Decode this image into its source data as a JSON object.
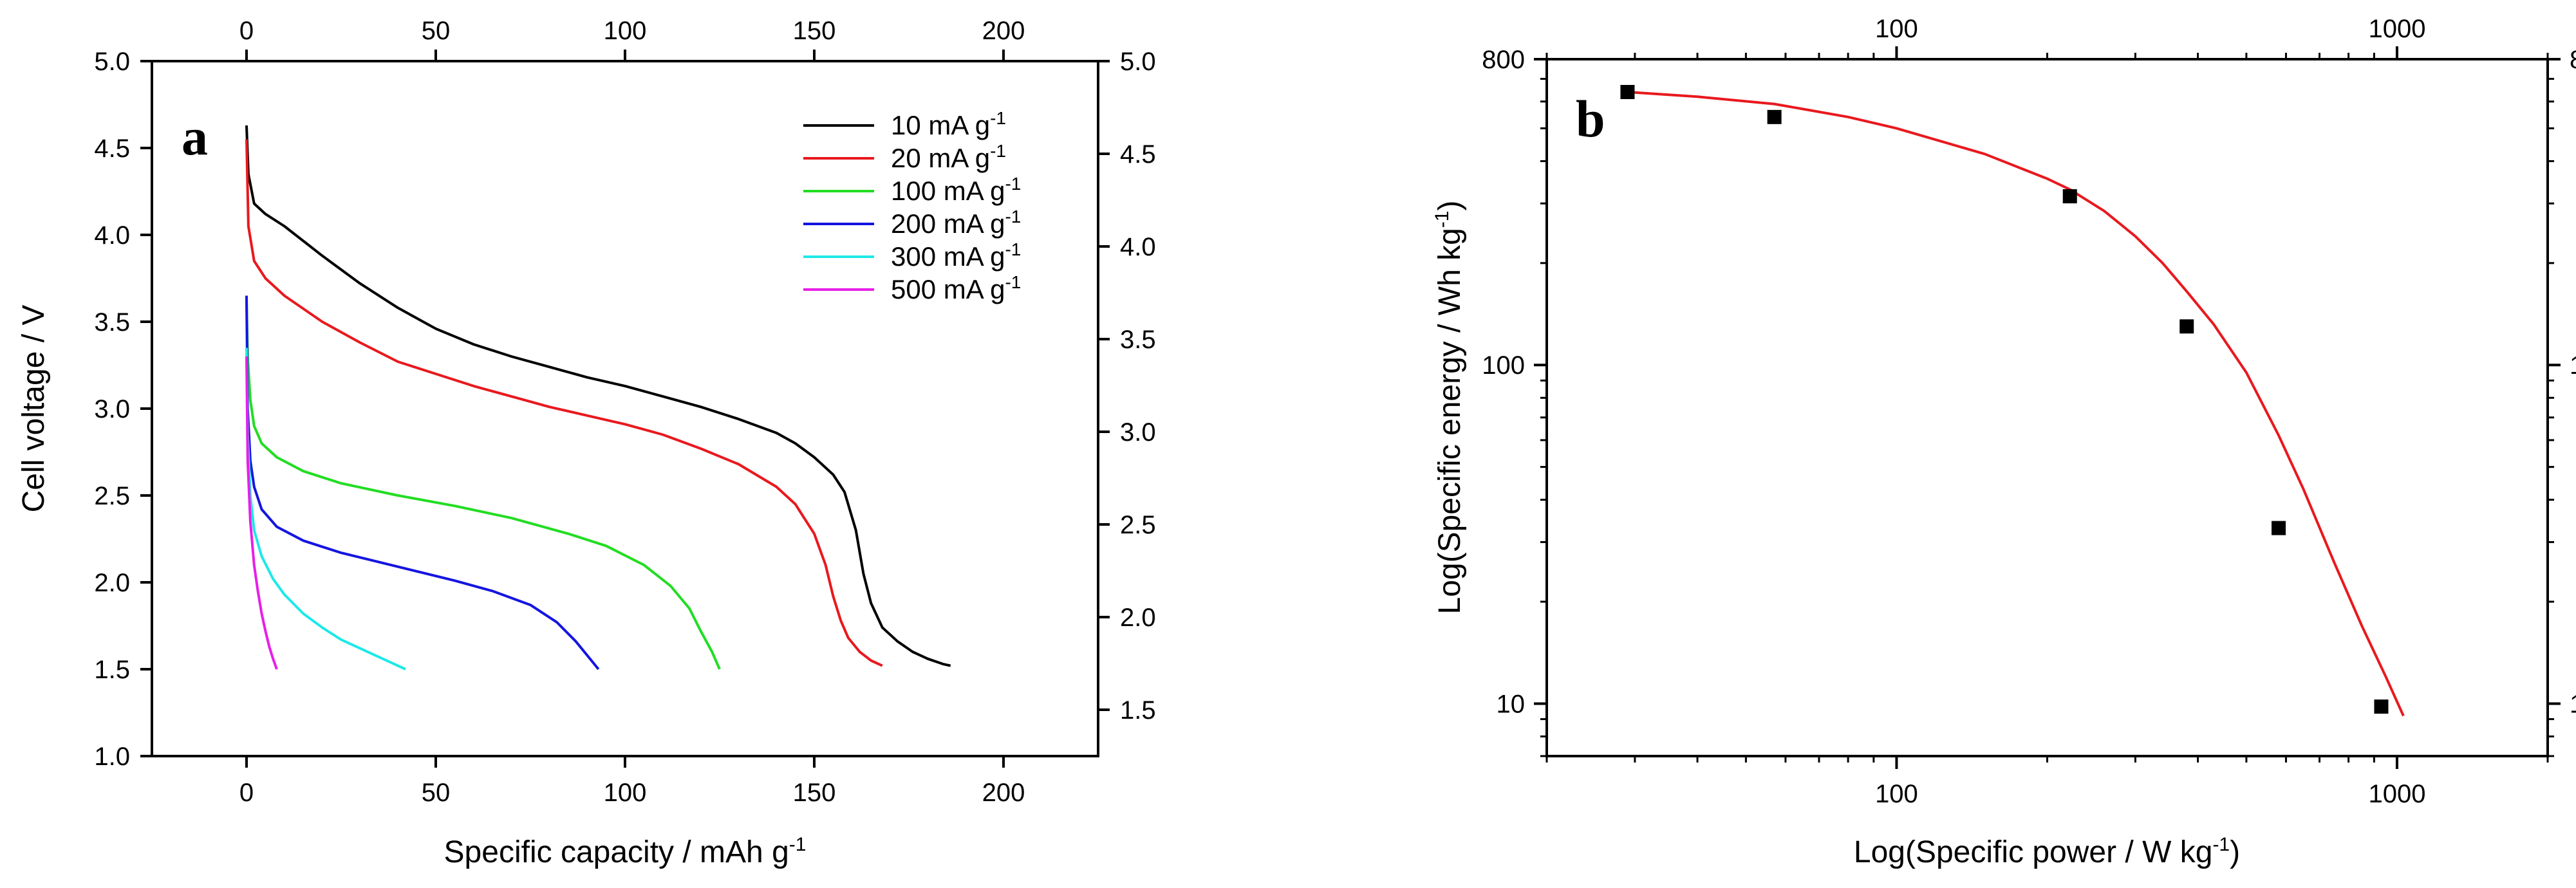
{
  "chart_data": [
    {
      "type": "line",
      "panel_label": "a",
      "xlabel": "Specific capacity / mAh g",
      "xlabel_sup": "-1",
      "ylabel": "Cell voltage / V",
      "xlim": [
        -25,
        225
      ],
      "ylim": [
        1.0,
        5.0
      ],
      "y2lim": [
        1.25,
        5.0
      ],
      "x_ticks": [
        "0",
        "50",
        "100",
        "150",
        "200"
      ],
      "y_ticks": [
        "1.0",
        "1.5",
        "2.0",
        "2.5",
        "3.0",
        "3.5",
        "4.0",
        "4.5",
        "5.0"
      ],
      "y2_ticks": [
        "1.5",
        "2.0",
        "2.5",
        "3.0",
        "3.5",
        "4.0",
        "4.5",
        "5.0"
      ],
      "legend_position": "top-right",
      "series": [
        {
          "name": "10 mA g",
          "sup": "-1",
          "color": "#000000",
          "x": [
            0,
            0.5,
            2,
            5,
            10,
            20,
            30,
            40,
            50,
            60,
            70,
            80,
            90,
            100,
            110,
            120,
            130,
            140,
            145,
            150,
            155,
            158,
            161,
            163,
            165,
            168,
            172,
            176,
            180,
            184,
            186
          ],
          "y": [
            4.63,
            4.35,
            4.18,
            4.12,
            4.05,
            3.88,
            3.72,
            3.58,
            3.46,
            3.37,
            3.3,
            3.24,
            3.18,
            3.13,
            3.07,
            3.01,
            2.94,
            2.86,
            2.8,
            2.72,
            2.62,
            2.52,
            2.3,
            2.05,
            1.88,
            1.74,
            1.66,
            1.6,
            1.56,
            1.53,
            1.52
          ]
        },
        {
          "name": "20 mA g",
          "sup": "-1",
          "color": "#e8191e",
          "x": [
            0,
            0.5,
            2,
            5,
            10,
            20,
            30,
            40,
            50,
            60,
            70,
            80,
            90,
            100,
            110,
            120,
            130,
            140,
            145,
            150,
            153,
            155,
            157,
            159,
            162,
            165,
            168
          ],
          "y": [
            4.55,
            4.05,
            3.85,
            3.75,
            3.65,
            3.5,
            3.38,
            3.27,
            3.2,
            3.13,
            3.07,
            3.01,
            2.96,
            2.91,
            2.85,
            2.77,
            2.68,
            2.55,
            2.45,
            2.28,
            2.1,
            1.92,
            1.78,
            1.68,
            1.6,
            1.55,
            1.52
          ]
        },
        {
          "name": "100 mA g",
          "sup": "-1",
          "color": "#22dd22",
          "x": [
            0,
            0.3,
            1,
            2,
            4,
            8,
            15,
            25,
            40,
            55,
            70,
            85,
            95,
            105,
            112,
            117,
            120,
            123,
            125
          ],
          "y": [
            3.62,
            3.3,
            3.05,
            2.9,
            2.8,
            2.72,
            2.64,
            2.57,
            2.5,
            2.44,
            2.37,
            2.28,
            2.21,
            2.1,
            1.98,
            1.85,
            1.72,
            1.6,
            1.5
          ]
        },
        {
          "name": "200 mA g",
          "sup": "-1",
          "color": "#1515e0",
          "x": [
            0,
            0.3,
            1,
            2,
            4,
            8,
            15,
            25,
            40,
            55,
            65,
            75,
            82,
            87,
            90,
            93
          ],
          "y": [
            3.65,
            3.0,
            2.7,
            2.55,
            2.42,
            2.32,
            2.24,
            2.17,
            2.09,
            2.01,
            1.95,
            1.87,
            1.77,
            1.66,
            1.58,
            1.5
          ]
        },
        {
          "name": "300 mA g",
          "sup": "-1",
          "color": "#1ee8e8",
          "x": [
            0,
            0.3,
            1,
            2,
            4,
            7,
            10,
            15,
            20,
            25,
            30,
            35,
            40,
            42
          ],
          "y": [
            3.35,
            2.85,
            2.5,
            2.3,
            2.15,
            2.02,
            1.93,
            1.82,
            1.74,
            1.67,
            1.62,
            1.57,
            1.52,
            1.5
          ]
        },
        {
          "name": "500 mA g",
          "sup": "-1",
          "color": "#e81ee8",
          "x": [
            0,
            0.3,
            1,
            2,
            3,
            4,
            5,
            6,
            7,
            8
          ],
          "y": [
            3.3,
            2.7,
            2.35,
            2.1,
            1.95,
            1.82,
            1.72,
            1.63,
            1.56,
            1.5
          ]
        }
      ]
    },
    {
      "type": "scatter",
      "panel_label": "b",
      "xscale": "log",
      "yscale": "log",
      "xlabel": "Log(Specific power / W kg",
      "xlabel_sup": "-1",
      "xlabel_end": ")",
      "ylabel": "Log(Specific energy / Wh kg",
      "ylabel_sup": "-1",
      "ylabel_end": ")",
      "xlim": [
        20,
        2000
      ],
      "ylim": [
        7,
        800
      ],
      "x_ticks": [
        "100",
        "1000"
      ],
      "y_ticks": [
        "10",
        "100",
        "800"
      ],
      "points": {
        "color": "#000000",
        "x": [
          29,
          57,
          222,
          380,
          580,
          930
        ],
        "y": [
          640,
          540,
          315,
          130,
          33,
          9.8
        ]
      },
      "fit": {
        "color": "#e8191e",
        "x": [
          29,
          40,
          57,
          80,
          100,
          150,
          200,
          222,
          260,
          300,
          340,
          380,
          430,
          500,
          580,
          650,
          750,
          850,
          950,
          1030
        ],
        "y": [
          640,
          620,
          590,
          540,
          500,
          420,
          355,
          330,
          285,
          240,
          200,
          165,
          132,
          95,
          62,
          43,
          26,
          17,
          12,
          9.2
        ]
      }
    }
  ]
}
